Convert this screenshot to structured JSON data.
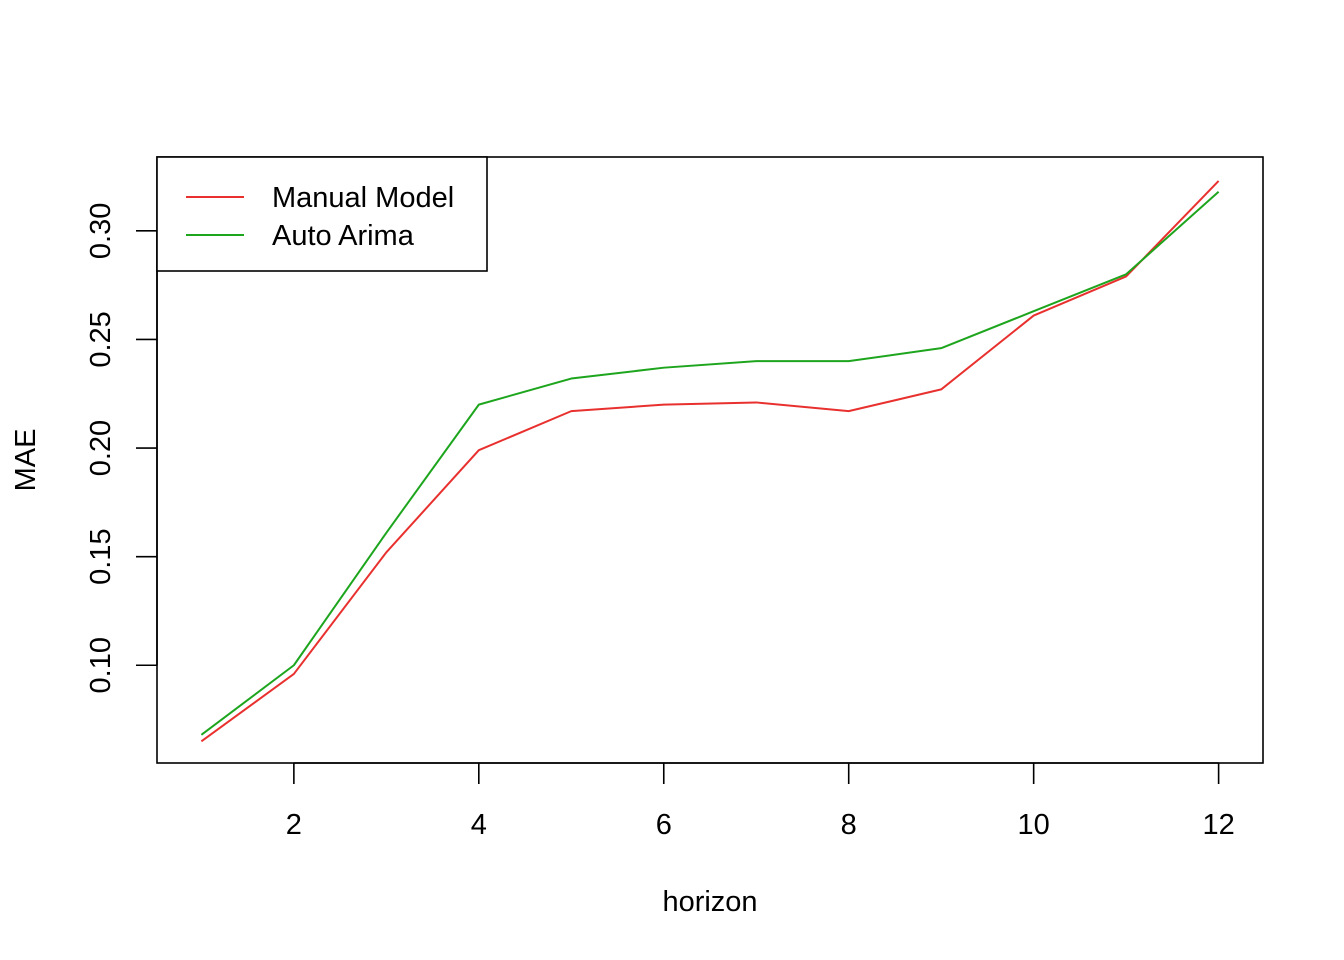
{
  "chart_data": {
    "type": "line",
    "title": "",
    "xlabel": "horizon",
    "ylabel": "MAE",
    "x": [
      1,
      2,
      3,
      4,
      5,
      6,
      7,
      8,
      9,
      10,
      11,
      12
    ],
    "xlim": [
      0.52,
      12.48
    ],
    "ylim": [
      0.055,
      0.334
    ],
    "xticks": [
      2,
      4,
      6,
      8,
      10,
      12
    ],
    "xtick_labels": [
      "2",
      "4",
      "6",
      "8",
      "10",
      "12"
    ],
    "yticks": [
      0.1,
      0.15,
      0.2,
      0.25,
      0.3
    ],
    "ytick_labels": [
      "0.10",
      "0.15",
      "0.20",
      "0.25",
      "0.30"
    ],
    "grid": false,
    "legend_position": "top-left",
    "series": [
      {
        "name": "Manual Model",
        "color": "#e8312f",
        "values": [
          0.065,
          0.096,
          0.152,
          0.199,
          0.217,
          0.22,
          0.221,
          0.217,
          0.227,
          0.261,
          0.279,
          0.323
        ]
      },
      {
        "name": "Auto Arima",
        "color": "#1ea51e",
        "values": [
          0.068,
          0.1,
          0.161,
          0.22,
          0.232,
          0.237,
          0.24,
          0.24,
          0.246,
          0.263,
          0.28,
          0.318
        ]
      }
    ]
  }
}
